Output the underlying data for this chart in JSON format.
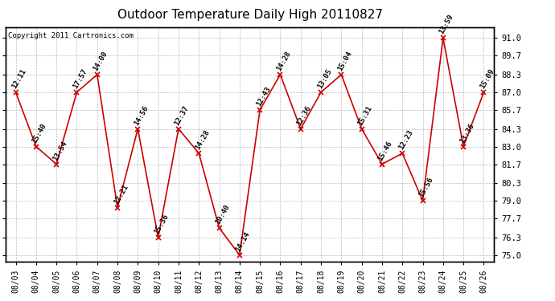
{
  "title": "Outdoor Temperature Daily High 20110827",
  "copyright": "Copyright 2011 Cartronics.com",
  "dates": [
    "08/03",
    "08/04",
    "08/05",
    "08/06",
    "08/07",
    "08/08",
    "08/09",
    "08/10",
    "08/11",
    "08/12",
    "08/13",
    "08/14",
    "08/15",
    "08/16",
    "08/17",
    "08/18",
    "08/19",
    "08/20",
    "08/21",
    "08/22",
    "08/23",
    "08/24",
    "08/25",
    "08/26"
  ],
  "temps": [
    87.0,
    83.0,
    81.7,
    87.0,
    88.3,
    78.5,
    84.3,
    76.3,
    84.3,
    82.5,
    77.0,
    75.0,
    85.7,
    88.3,
    84.3,
    87.0,
    88.3,
    84.3,
    81.7,
    82.5,
    79.0,
    91.0,
    83.0,
    87.0
  ],
  "labels": [
    "12:11",
    "15:40",
    "13:54",
    "17:57",
    "14:00",
    "12:21",
    "14:56",
    "15:36",
    "12:37",
    "14:28",
    "10:40",
    "14:14",
    "12:43",
    "14:28",
    "12:36",
    "13:05",
    "15:04",
    "15:31",
    "15:46",
    "12:23",
    "15:56",
    "13:59",
    "13:36",
    "15:09"
  ],
  "yticks": [
    75.0,
    76.3,
    77.7,
    79.0,
    80.3,
    81.7,
    83.0,
    84.3,
    85.7,
    87.0,
    88.3,
    89.7,
    91.0
  ],
  "ylim_min": 74.5,
  "ylim_max": 91.8,
  "line_color": "#cc0000",
  "marker_color": "#cc0000",
  "bg_color": "#ffffff",
  "grid_color": "#bbbbbb",
  "title_fontsize": 11,
  "label_fontsize": 6.5,
  "copyright_fontsize": 6.5,
  "tick_fontsize": 7.5,
  "xlabel_fontsize": 7.0
}
